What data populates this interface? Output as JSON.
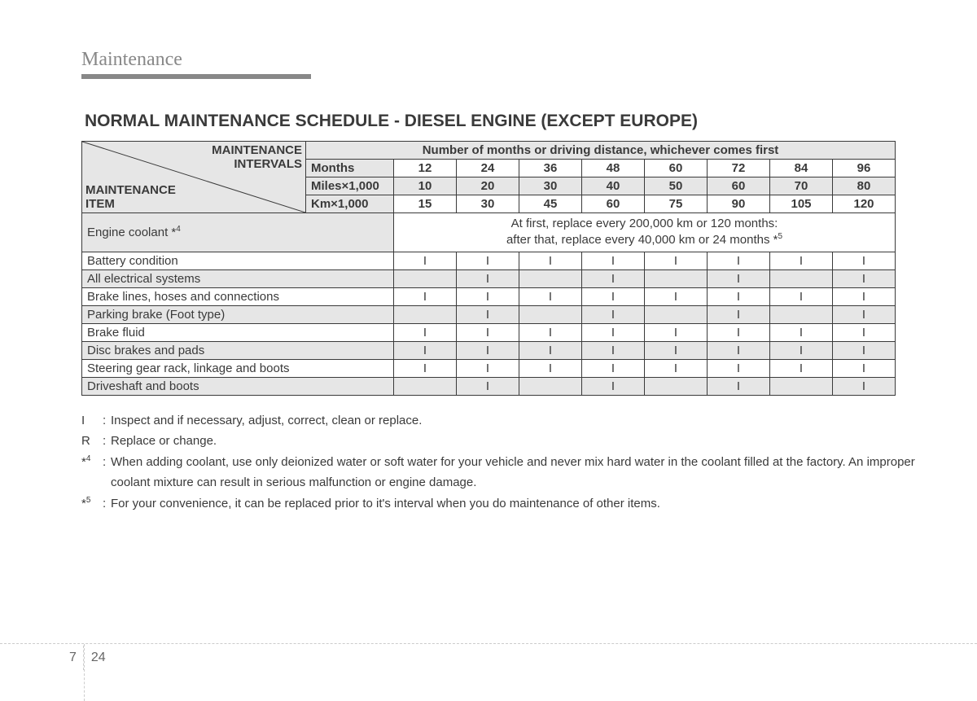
{
  "section_title": "Maintenance",
  "main_title": "NORMAL MAINTENANCE SCHEDULE - DIESEL ENGINE (EXCEPT EUROPE)",
  "header": {
    "diag_top1": "MAINTENANCE",
    "diag_top2": "INTERVALS",
    "diag_bot1": "MAINTENANCE",
    "diag_bot2": "ITEM",
    "span_title": "Number of months or driving distance, whichever comes first",
    "row_labels": [
      "Months",
      "Miles×1,000",
      "Km×1,000"
    ],
    "months": [
      "12",
      "24",
      "36",
      "48",
      "60",
      "72",
      "84",
      "96"
    ],
    "miles": [
      "10",
      "20",
      "30",
      "40",
      "50",
      "60",
      "70",
      "80"
    ],
    "km": [
      "15",
      "30",
      "45",
      "60",
      "75",
      "90",
      "105",
      "120"
    ]
  },
  "coolant": {
    "label": "Engine coolant *",
    "sup": "4",
    "note1": "At first, replace every 200,000 km or 120 months:",
    "note2": "after that, replace every 40,000 km or 24 months *",
    "note2_sup": "5"
  },
  "rows": [
    {
      "label": "Battery condition",
      "vals": [
        "I",
        "I",
        "I",
        "I",
        "I",
        "I",
        "I",
        "I"
      ]
    },
    {
      "label": "All electrical systems",
      "vals": [
        "",
        "I",
        "",
        "I",
        "",
        "I",
        "",
        "I"
      ]
    },
    {
      "label": "Brake lines, hoses and connections",
      "vals": [
        "I",
        "I",
        "I",
        "I",
        "I",
        "I",
        "I",
        "I"
      ]
    },
    {
      "label": "Parking brake (Foot type)",
      "vals": [
        "",
        "I",
        "",
        "I",
        "",
        "I",
        "",
        "I"
      ]
    },
    {
      "label": "Brake fluid",
      "vals": [
        "I",
        "I",
        "I",
        "I",
        "I",
        "I",
        "I",
        "I"
      ]
    },
    {
      "label": "Disc brakes and pads",
      "vals": [
        "I",
        "I",
        "I",
        "I",
        "I",
        "I",
        "I",
        "I"
      ]
    },
    {
      "label": "Steering gear rack, linkage and boots",
      "vals": [
        "I",
        "I",
        "I",
        "I",
        "I",
        "I",
        "I",
        "I"
      ]
    },
    {
      "label": "Driveshaft and boots",
      "vals": [
        "",
        "I",
        "",
        "I",
        "",
        "I",
        "",
        "I"
      ]
    }
  ],
  "legend": {
    "I": "Inspect and if necessary, adjust, correct, clean or replace.",
    "R": "Replace or change.",
    "n4": "When adding coolant, use only deionized water or soft water for your vehicle and never mix hard water in the coolant filled at the factory. An improper coolant mixture can result in serious malfunction or engine damage.",
    "n5": "For your convenience, it can be replaced prior to it's interval when you do maintenance of other items."
  },
  "page": {
    "chapter": "7",
    "num": "24"
  },
  "colors": {
    "grey_bg": "#e6e6e6",
    "border": "#3a3a3a",
    "section_grey": "#888888"
  }
}
